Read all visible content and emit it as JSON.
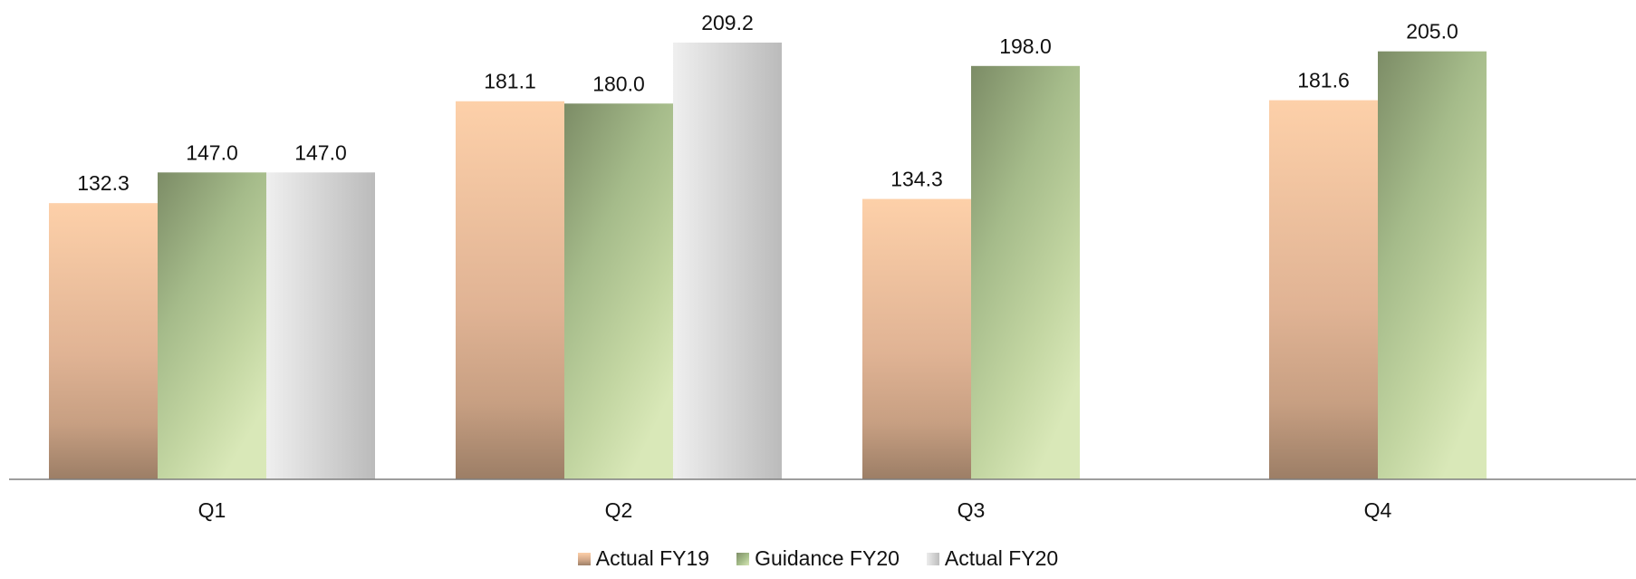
{
  "chart_data": {
    "type": "bar",
    "categories": [
      "Q1",
      "Q2",
      "Q3",
      "Q4"
    ],
    "series": [
      {
        "name": "Actual FY19",
        "values": [
          132.3,
          181.1,
          134.3,
          181.6
        ],
        "color": "#f6c9a4"
      },
      {
        "name": "Guidance FY20",
        "values": [
          147.0,
          180.0,
          198.0,
          205.0
        ],
        "color": "#9aae80"
      },
      {
        "name": "Actual FY20",
        "values": [
          147.0,
          209.2,
          null,
          null
        ],
        "color": "#d6d6d6"
      }
    ],
    "data_labels": [
      [
        "132.3",
        "181.1",
        "134.3",
        "181.6"
      ],
      [
        "147.0",
        "180.0",
        "198.0",
        "205.0"
      ],
      [
        "147.0",
        "209.2",
        null,
        null
      ]
    ],
    "ylim": [
      0,
      230
    ],
    "grid": false,
    "legend_position": "bottom-center"
  }
}
